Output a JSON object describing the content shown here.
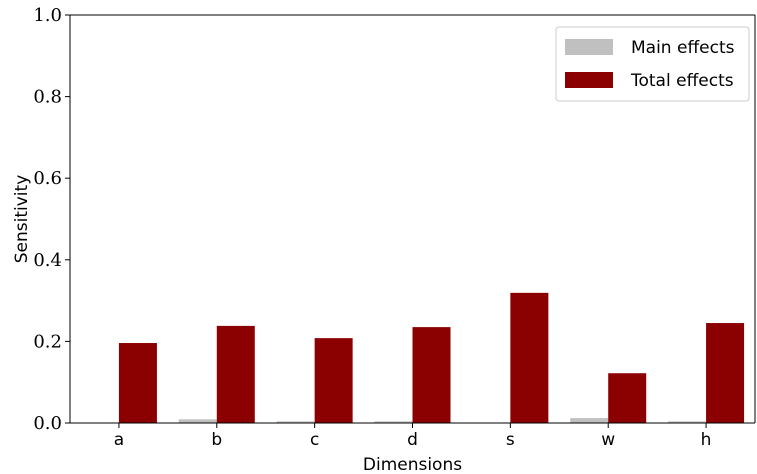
{
  "chart_data": {
    "type": "bar",
    "title": "",
    "xlabel": "Dimensions",
    "ylabel": "Sensitivity",
    "ylim": [
      0,
      1.0
    ],
    "yticks": [
      "0.0",
      "0.2",
      "0.4",
      "0.6",
      "0.8",
      "1.0"
    ],
    "categories": [
      "a",
      "b",
      "c",
      "d",
      "s",
      "w",
      "h"
    ],
    "series": [
      {
        "name": "Main effects",
        "color": "#c0c0c0",
        "values": [
          0.0,
          0.009,
          0.004,
          0.004,
          0.001,
          0.012,
          0.004
        ]
      },
      {
        "name": "Total effects",
        "color": "#8b0000",
        "values": [
          0.196,
          0.238,
          0.208,
          0.235,
          0.319,
          0.122,
          0.245
        ]
      }
    ],
    "grid": false,
    "legend": "top-right"
  }
}
